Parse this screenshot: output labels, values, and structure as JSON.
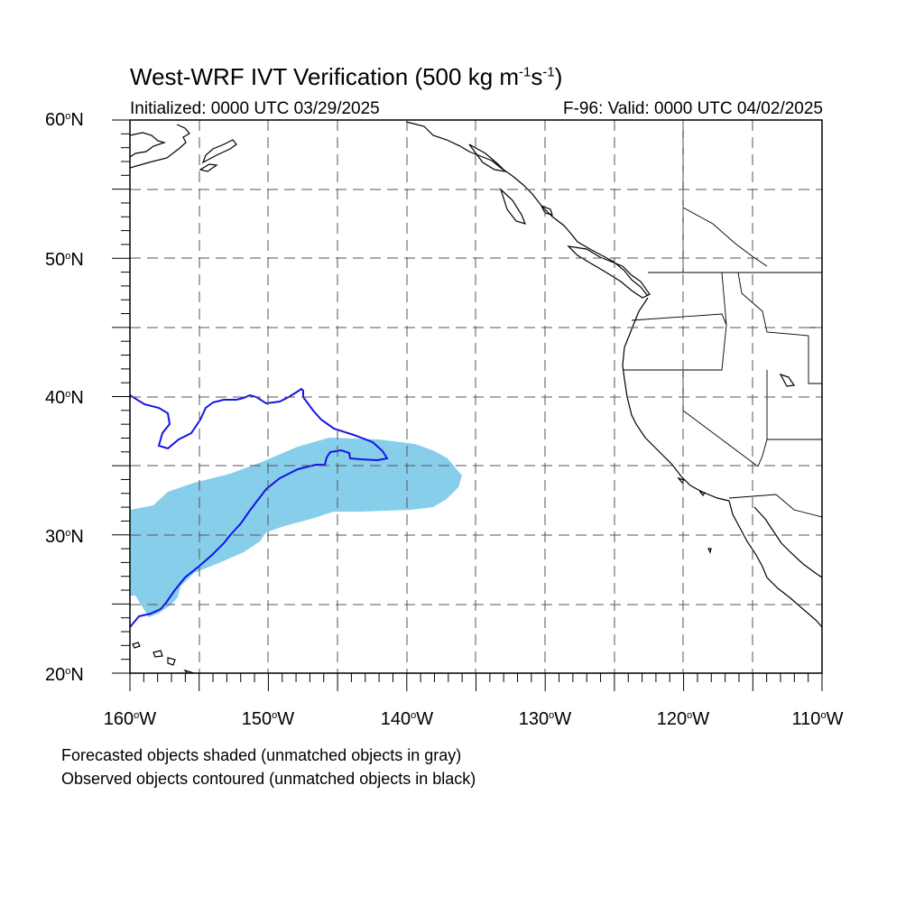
{
  "title": {
    "text": "West-WRF IVT Verification (500 kg m",
    "sup1": "-1",
    "s": "s",
    "sup2": "-1",
    "close": ")"
  },
  "init_label": "Initialized: 0000 UTC 03/29/2025",
  "valid_label": "F-96: Valid: 0000 UTC 04/02/2025",
  "lat_labels": [
    {
      "value": "60",
      "suffix": "N"
    },
    {
      "value": "50",
      "suffix": "N"
    },
    {
      "value": "40",
      "suffix": "N"
    },
    {
      "value": "30",
      "suffix": "N"
    },
    {
      "value": "20",
      "suffix": "N"
    }
  ],
  "lon_labels": [
    {
      "value": "160",
      "suffix": "W"
    },
    {
      "value": "150",
      "suffix": "W"
    },
    {
      "value": "140",
      "suffix": "W"
    },
    {
      "value": "130",
      "suffix": "W"
    },
    {
      "value": "120",
      "suffix": "W"
    },
    {
      "value": "110",
      "suffix": "W"
    }
  ],
  "degree_symbol": "o",
  "notes": {
    "forecast": "Forecasted objects shaded (unmatched objects in gray)",
    "observed": "Observed objects contoured (unmatched objects in black)"
  },
  "colors": {
    "forecast_fill": "#87ceeb",
    "observed_contour": "#1414e6",
    "coast": "#000000",
    "grid": "#555555"
  },
  "map": {
    "lon_range": [
      -160,
      -110
    ],
    "lat_range": [
      20,
      60
    ],
    "grid_spacing_deg": 5
  }
}
